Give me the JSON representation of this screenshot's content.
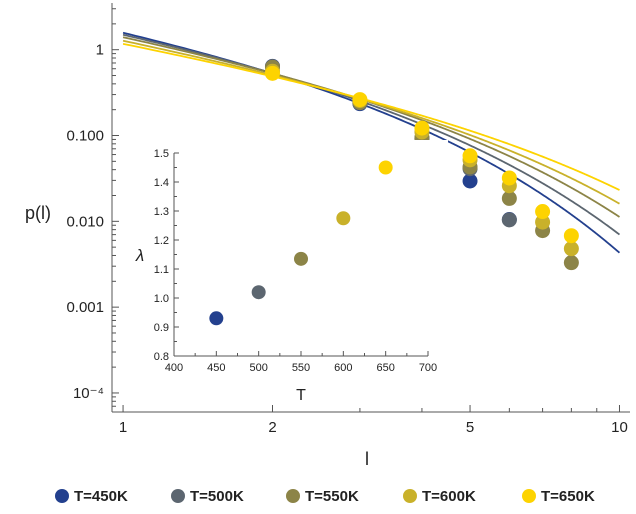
{
  "chart_data": [
    {
      "type": "scatter",
      "role": "main",
      "title": "",
      "xlabel": "l",
      "ylabel": "p(l)",
      "xscale": "log",
      "yscale": "log",
      "xlim": [
        0.95,
        10.5
      ],
      "ylim": [
        6e-05,
        3.5
      ],
      "x_ticks": [
        {
          "value": 1,
          "label": "1"
        },
        {
          "value": 2,
          "label": "2"
        },
        {
          "value": 5,
          "label": "5"
        },
        {
          "value": 10,
          "label": "10"
        }
      ],
      "y_ticks": [
        {
          "value": 1,
          "label": "1"
        },
        {
          "value": 0.1,
          "label": "0.100"
        },
        {
          "value": 0.01,
          "label": "0.010"
        },
        {
          "value": 0.001,
          "label": "0.001"
        },
        {
          "value": 0.0001,
          "label": "10⁻⁴"
        }
      ],
      "series": [
        {
          "name": "T=450K",
          "color": "#23408e",
          "x": [
            2,
            3,
            4,
            5,
            6
          ],
          "y": [
            0.64,
            0.235,
            0.093,
            0.0295,
            0.0105
          ],
          "fit": {
            "form": "A*l^(-B)*exp(-C*l)",
            "A": 2.35,
            "B": 1.0,
            "C": 0.4
          }
        },
        {
          "name": "T=500K",
          "color": "#5c6670",
          "x": [
            2,
            3,
            4,
            5,
            6
          ],
          "y": [
            0.635,
            0.24,
            0.092,
            0.041,
            0.0104
          ],
          "fit": {
            "form": "A*l^(-B)*exp(-C*l)",
            "A": 2.1,
            "B": 1.0,
            "C": 0.34
          }
        },
        {
          "name": "T=550K",
          "color": "#8c8447",
          "x": [
            2,
            3,
            4,
            5,
            6,
            7,
            8
          ],
          "y": [
            0.625,
            0.242,
            0.095,
            0.043,
            0.0185,
            0.0078,
            0.0033
          ],
          "fit": {
            "form": "A*l^(-B)*exp(-C*l)",
            "A": 1.85,
            "B": 1.0,
            "C": 0.28
          }
        },
        {
          "name": "T=600K",
          "color": "#c9b12a",
          "x": [
            2,
            3,
            4,
            5,
            6,
            7,
            8
          ],
          "y": [
            0.56,
            0.255,
            0.11,
            0.052,
            0.026,
            0.0098,
            0.0048
          ],
          "fit": {
            "form": "A*l^(-B)*exp(-C*l)",
            "A": 1.6,
            "B": 1.0,
            "C": 0.23
          }
        },
        {
          "name": "T=650K",
          "color": "#fdd300",
          "x": [
            2,
            3,
            4,
            5,
            6,
            7,
            8
          ],
          "y": [
            0.53,
            0.262,
            0.122,
            0.058,
            0.032,
            0.013,
            0.0068
          ],
          "fit": {
            "form": "A*l^(-B)*exp(-C*l)",
            "A": 1.4,
            "B": 1.0,
            "C": 0.18
          }
        }
      ],
      "legend": "bottom"
    },
    {
      "type": "scatter",
      "role": "inset",
      "title": "",
      "xlabel": "T",
      "ylabel": "λ",
      "xlim": [
        400,
        700
      ],
      "ylim": [
        0.8,
        1.5
      ],
      "x_ticks": [
        400,
        450,
        500,
        550,
        600,
        650,
        700
      ],
      "y_ticks": [
        0.8,
        0.9,
        1.0,
        1.1,
        1.2,
        1.3,
        1.4,
        1.5
      ],
      "x_tick_labels": [
        "400",
        "450",
        "500",
        "550",
        "600",
        "650",
        "700"
      ],
      "y_tick_labels": [
        "0.8",
        "0.9",
        "1.0",
        "1.1",
        "1.2",
        "1.3",
        "1.4",
        "1.5"
      ],
      "points": [
        {
          "x": 450,
          "y": 0.93,
          "color": "#23408e"
        },
        {
          "x": 500,
          "y": 1.02,
          "color": "#5c6670"
        },
        {
          "x": 550,
          "y": 1.135,
          "color": "#8c8447"
        },
        {
          "x": 600,
          "y": 1.275,
          "color": "#c9b12a"
        },
        {
          "x": 650,
          "y": 1.45,
          "color": "#fdd300"
        }
      ]
    }
  ]
}
